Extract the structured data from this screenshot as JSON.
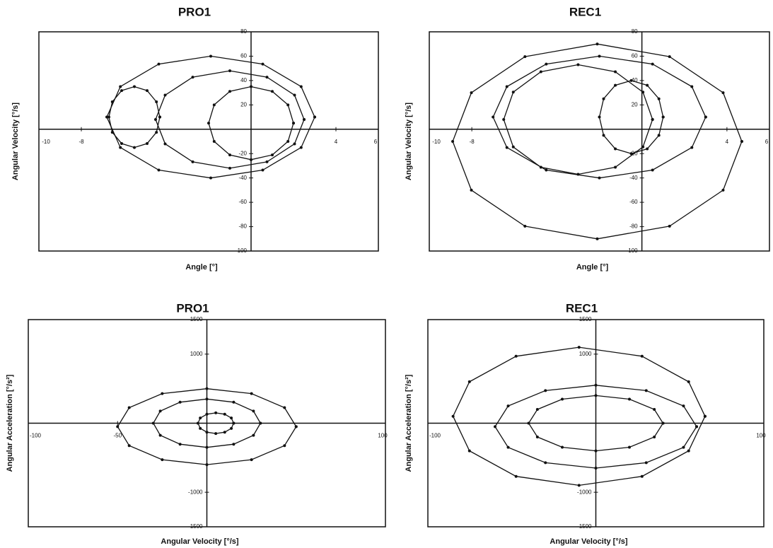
{
  "chart_data": [
    {
      "type": "line",
      "title": "PRO1",
      "xlabel": "Angle [°]",
      "ylabel": "Angular Velocity [°/s]",
      "xlim": [
        -10,
        6
      ],
      "ylim": [
        -100,
        80
      ],
      "xticks": [
        -10,
        -8,
        4,
        6
      ],
      "yticks": [
        -100,
        -80,
        -60,
        -40,
        -20,
        20,
        40,
        60,
        80
      ],
      "series": [
        {
          "color": "#111111",
          "x": [
            3.0,
            2.36,
            0.55,
            -1.9,
            -4.35,
            -6.16,
            -6.8,
            -6.16,
            -4.35,
            -1.9,
            0.55,
            2.36,
            3.0
          ],
          "values": [
            10,
            35,
            53.5,
            60,
            53.5,
            35,
            10,
            -15,
            -33.5,
            -40,
            -33.5,
            -15,
            10
          ]
        },
        {
          "color": "#111111",
          "x": [
            -4.3,
            -4.46,
            -4.9,
            -5.5,
            -6.1,
            -6.54,
            -6.7,
            -6.54,
            -6.1,
            -5.5,
            -4.9,
            -4.46,
            -4.3
          ],
          "values": [
            10,
            22.5,
            31.75,
            35,
            31.75,
            22.5,
            10,
            -2.5,
            -11.75,
            -15,
            -11.75,
            -2.5,
            10
          ]
        },
        {
          "color": "#111111",
          "x": [
            2,
            1.74,
            1,
            0,
            -1,
            -1.74,
            -2,
            -1.74,
            -1,
            0,
            1,
            1.74,
            2
          ],
          "values": [
            5,
            20,
            31.1,
            35,
            31.1,
            20,
            5,
            -10,
            -21.1,
            -25,
            -21.1,
            -10,
            5
          ]
        },
        {
          "color": "#111111",
          "x": [
            2.5,
            2.05,
            0.75,
            -1,
            -2.75,
            -4.05,
            -4.5,
            -4.05,
            -2.75,
            -1,
            0.75,
            2.05,
            2.5
          ],
          "values": [
            8,
            28,
            42.8,
            48,
            42.8,
            28,
            8,
            -12,
            -26.8,
            -32,
            -26.8,
            -12,
            8
          ]
        }
      ]
    },
    {
      "type": "line",
      "title": "REC1",
      "xlabel": "Angle [°]",
      "ylabel": "Angular Velocity [°/s]",
      "xlim": [
        -10,
        6
      ],
      "ylim": [
        -100,
        80
      ],
      "xticks": [
        -10,
        -8,
        4,
        6
      ],
      "yticks": [
        -100,
        -80,
        -60,
        -40,
        -20,
        20,
        40,
        60,
        80
      ],
      "series": [
        {
          "color": "#111111",
          "x": [
            4.7,
            3.82,
            1.3,
            -2.1,
            -5.5,
            -8.02,
            -8.9,
            -8.02,
            -5.5,
            -2.1,
            1.3,
            3.82,
            4.7
          ],
          "values": [
            -10,
            30,
            59.6,
            70,
            59.6,
            30,
            -10,
            -50,
            -79.6,
            -90,
            -79.6,
            -50,
            -10
          ]
        },
        {
          "color": "#111111",
          "x": [
            3,
            2.35,
            0.5,
            -2,
            -4.5,
            -6.35,
            -7,
            -6.35,
            -4.5,
            -2,
            0.5,
            2.35,
            3
          ],
          "values": [
            10,
            35,
            53.5,
            60,
            53.5,
            35,
            10,
            -15,
            -33.5,
            -40,
            -33.5,
            -15,
            10
          ]
        },
        {
          "color": "#111111",
          "x": [
            1,
            0.8,
            0.25,
            -0.5,
            -1.25,
            -1.8,
            -2,
            -1.8,
            -1.25,
            -0.5,
            0.25,
            0.8,
            1
          ],
          "values": [
            10,
            25,
            36.1,
            40,
            36.1,
            25,
            10,
            -5,
            -16.1,
            -20,
            -16.1,
            -5,
            10
          ]
        },
        {
          "color": "#111111",
          "x": [
            0.5,
            0.05,
            -1.25,
            -3,
            -4.75,
            -6.05,
            -6.5,
            -6.05,
            -4.75,
            -3,
            -1.25,
            0.05,
            0.5
          ],
          "values": [
            8,
            30.5,
            47.2,
            53,
            47.2,
            30.5,
            8,
            -14.5,
            -31.2,
            -37,
            -31.2,
            -14.5,
            8
          ]
        }
      ]
    },
    {
      "type": "line",
      "title": "PRO1",
      "xlabel": "Angular Velocity [°/s]",
      "ylabel": "Angular Acceleration [°/s²]",
      "xlim": [
        -100,
        100
      ],
      "ylim": [
        -1500,
        1500
      ],
      "xticks": [
        -100,
        -50,
        100
      ],
      "yticks": [
        -1500,
        -1000,
        1000,
        1500
      ],
      "series": [
        {
          "color": "#111111",
          "x": [
            50,
            43.5,
            25,
            0,
            -25,
            -43.5,
            -50,
            -43.5,
            -25,
            0,
            25,
            43.5,
            50
          ],
          "values": [
            -50,
            225,
            428.5,
            500,
            428.5,
            225,
            -50,
            -325,
            -528.5,
            -600,
            -528.5,
            -325,
            -50
          ]
        },
        {
          "color": "#111111",
          "x": [
            30,
            26.1,
            15,
            0,
            -15,
            -26.1,
            -30,
            -26.1,
            -15,
            0,
            15,
            26.1,
            30
          ],
          "values": [
            0,
            175,
            304.5,
            350,
            304.5,
            175,
            0,
            -175,
            -304.5,
            -350,
            -304.5,
            -175,
            0
          ]
        },
        {
          "color": "#111111",
          "x": [
            15,
            13.7,
            10,
            5,
            0,
            -3.7,
            -5,
            -3.7,
            0,
            5,
            10,
            13.7,
            15
          ],
          "values": [
            0,
            75,
            130.5,
            150,
            130.5,
            75,
            0,
            -75,
            -130.5,
            -150,
            -130.5,
            -75,
            0
          ]
        }
      ]
    },
    {
      "type": "line",
      "title": "REC1",
      "xlabel": "Angular Velocity [°/s]",
      "ylabel": "Angular Acceleration [°/s²]",
      "xlim": [
        -100,
        100
      ],
      "ylim": [
        -1500,
        1500
      ],
      "xticks": [
        -100,
        100
      ],
      "yticks": [
        -1500,
        -1000,
        1000,
        1500
      ],
      "series": [
        {
          "color": "#111111",
          "x": [
            65,
            55.25,
            27.5,
            -10,
            -47.5,
            -75.25,
            -85,
            -75.25,
            -47.5,
            -10,
            27.5,
            55.25,
            65
          ],
          "values": [
            100,
            600,
            970,
            1100,
            970,
            600,
            100,
            -400,
            -770,
            -900,
            -770,
            -400,
            100
          ]
        },
        {
          "color": "#111111",
          "x": [
            60,
            52.2,
            30,
            0,
            -30,
            -52.2,
            -60,
            -52.2,
            -30,
            0,
            30,
            52.2,
            60
          ],
          "values": [
            -50,
            250,
            472,
            550,
            472,
            250,
            -50,
            -350,
            -572,
            -650,
            -572,
            -350,
            -50
          ]
        },
        {
          "color": "#111111",
          "x": [
            40,
            34.8,
            20,
            0,
            -20,
            -34.8,
            -40,
            -34.8,
            -20,
            0,
            20,
            34.8,
            40
          ],
          "values": [
            0,
            200,
            348,
            400,
            348,
            200,
            0,
            -200,
            -348,
            -400,
            -348,
            -200,
            0
          ]
        }
      ]
    }
  ]
}
